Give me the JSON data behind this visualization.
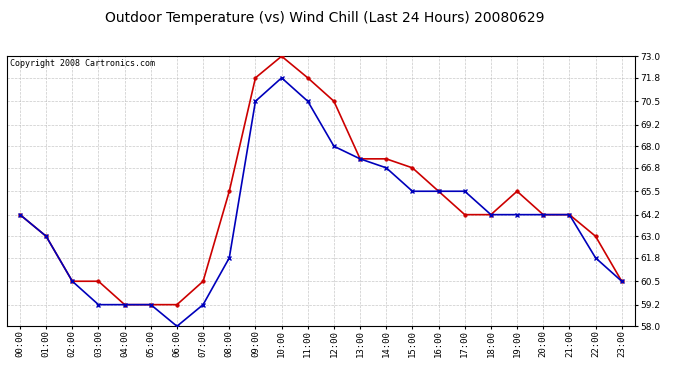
{
  "title": "Outdoor Temperature (vs) Wind Chill (Last 24 Hours) 20080629",
  "copyright": "Copyright 2008 Cartronics.com",
  "hours": [
    "00:00",
    "01:00",
    "02:00",
    "03:00",
    "04:00",
    "05:00",
    "06:00",
    "07:00",
    "08:00",
    "09:00",
    "10:00",
    "11:00",
    "12:00",
    "13:00",
    "14:00",
    "15:00",
    "16:00",
    "17:00",
    "18:00",
    "19:00",
    "20:00",
    "21:00",
    "22:00",
    "23:00"
  ],
  "temp": [
    64.2,
    63.0,
    60.5,
    60.5,
    59.2,
    59.2,
    59.2,
    60.5,
    65.5,
    71.8,
    73.0,
    71.8,
    70.5,
    67.3,
    67.3,
    66.8,
    65.5,
    64.2,
    64.2,
    65.5,
    64.2,
    64.2,
    63.0,
    60.5
  ],
  "windchill": [
    64.2,
    63.0,
    60.5,
    59.2,
    59.2,
    59.2,
    58.0,
    59.2,
    61.8,
    70.5,
    71.8,
    70.5,
    68.0,
    67.3,
    66.8,
    65.5,
    65.5,
    65.5,
    64.2,
    64.2,
    64.2,
    64.2,
    61.8,
    60.5
  ],
  "temp_color": "#cc0000",
  "windchill_color": "#0000bb",
  "ylim_min": 58.0,
  "ylim_max": 73.0,
  "yticks": [
    58.0,
    59.2,
    60.5,
    61.8,
    63.0,
    64.2,
    65.5,
    66.8,
    68.0,
    69.2,
    70.5,
    71.8,
    73.0
  ],
  "background_color": "#ffffff",
  "plot_bg_color": "#ffffff",
  "grid_color": "#bbbbbb",
  "title_fontsize": 10,
  "copyright_fontsize": 6,
  "tick_fontsize": 6.5
}
